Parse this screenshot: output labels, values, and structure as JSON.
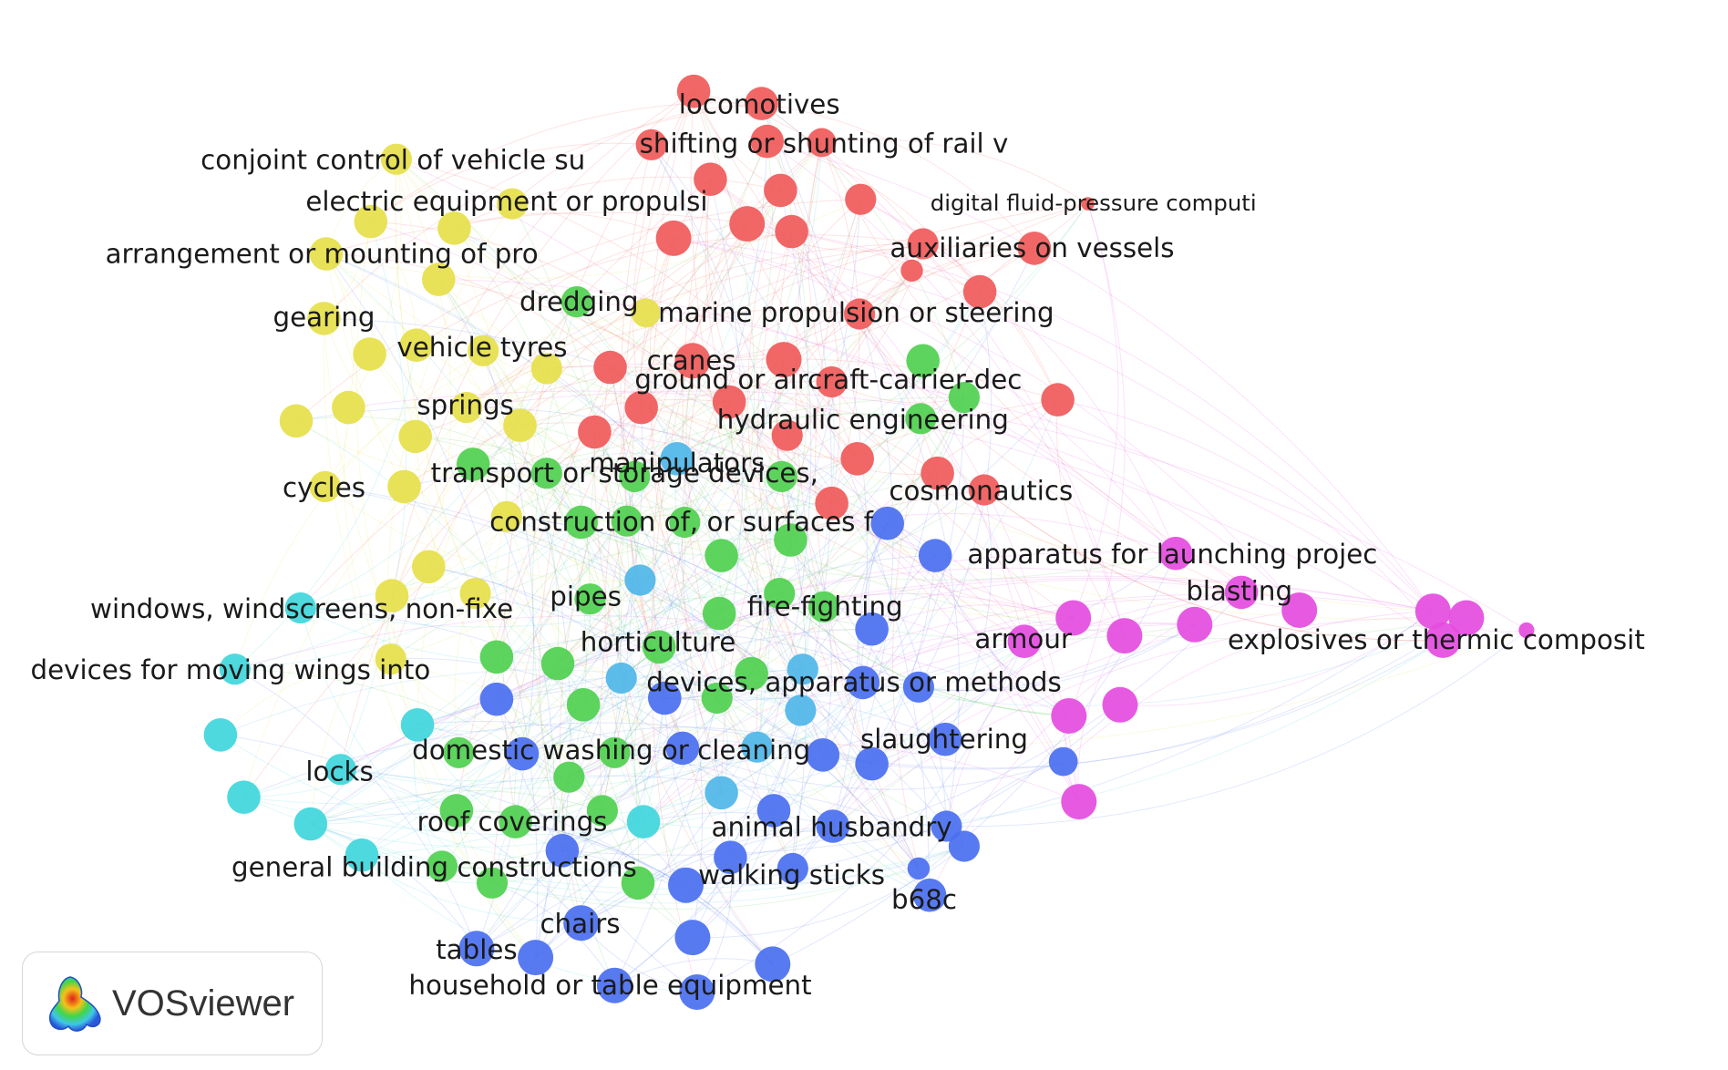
{
  "diagram": {
    "type": "network",
    "colors": {
      "red": "#f05a5a",
      "yellow": "#e6e04a",
      "green": "#4fd04f",
      "cyan": "#3fd6dc",
      "blue": "#4a6ff0",
      "sky": "#4fb6e8",
      "magenta": "#e44ce0"
    },
    "labels": [
      {
        "text": "locomotives",
        "cluster": "red"
      },
      {
        "text": "shifting or shunting of rail v",
        "cluster": "red"
      },
      {
        "text": "digital fluid-pressure computi",
        "cluster": "red"
      },
      {
        "text": "auxiliaries on vessels",
        "cluster": "red"
      },
      {
        "text": "marine propulsion or steering",
        "cluster": "red"
      },
      {
        "text": "cranes",
        "cluster": "red"
      },
      {
        "text": "ground or aircraft-carrier-dec",
        "cluster": "red"
      },
      {
        "text": "hydraulic engineering",
        "cluster": "green"
      },
      {
        "text": "cosmonautics",
        "cluster": "red"
      },
      {
        "text": "conjoint control of vehicle su",
        "cluster": "yellow"
      },
      {
        "text": "electric equipment or propulsi",
        "cluster": "yellow"
      },
      {
        "text": "arrangement or mounting of pro",
        "cluster": "yellow"
      },
      {
        "text": "gearing",
        "cluster": "yellow"
      },
      {
        "text": "dredging",
        "cluster": "green"
      },
      {
        "text": "vehicle tyres",
        "cluster": "yellow"
      },
      {
        "text": "springs",
        "cluster": "yellow"
      },
      {
        "text": "manipulators",
        "cluster": "sky"
      },
      {
        "text": "transport or storage devices,",
        "cluster": "green"
      },
      {
        "text": "cycles",
        "cluster": "yellow"
      },
      {
        "text": "construction of, or surfaces f",
        "cluster": "green"
      },
      {
        "text": "apparatus for launching projec",
        "cluster": "blue"
      },
      {
        "text": "blasting",
        "cluster": "magenta"
      },
      {
        "text": "windows, windscreens, non-fixe",
        "cluster": "cyan"
      },
      {
        "text": "pipes",
        "cluster": "sky"
      },
      {
        "text": "fire-fighting",
        "cluster": "green"
      },
      {
        "text": "armour",
        "cluster": "magenta"
      },
      {
        "text": "explosives or thermic composit",
        "cluster": "magenta"
      },
      {
        "text": "horticulture",
        "cluster": "green"
      },
      {
        "text": "devices for moving wings into",
        "cluster": "cyan"
      },
      {
        "text": "devices, apparatus or methods",
        "cluster": "blue"
      },
      {
        "text": "slaughtering",
        "cluster": "blue"
      },
      {
        "text": "domestic washing or cleaning",
        "cluster": "green"
      },
      {
        "text": "locks",
        "cluster": "cyan"
      },
      {
        "text": "roof coverings",
        "cluster": "green"
      },
      {
        "text": "animal husbandry",
        "cluster": "blue"
      },
      {
        "text": "general building constructions",
        "cluster": "green"
      },
      {
        "text": "walking sticks",
        "cluster": "blue"
      },
      {
        "text": "b68c",
        "cluster": "blue"
      },
      {
        "text": "chairs",
        "cluster": "blue"
      },
      {
        "text": "tables",
        "cluster": "blue"
      },
      {
        "text": "household or table equipment",
        "cluster": "blue"
      }
    ]
  },
  "brand": {
    "name": "VOSviewer",
    "logo_icon": "vosviewer-logo-icon"
  }
}
